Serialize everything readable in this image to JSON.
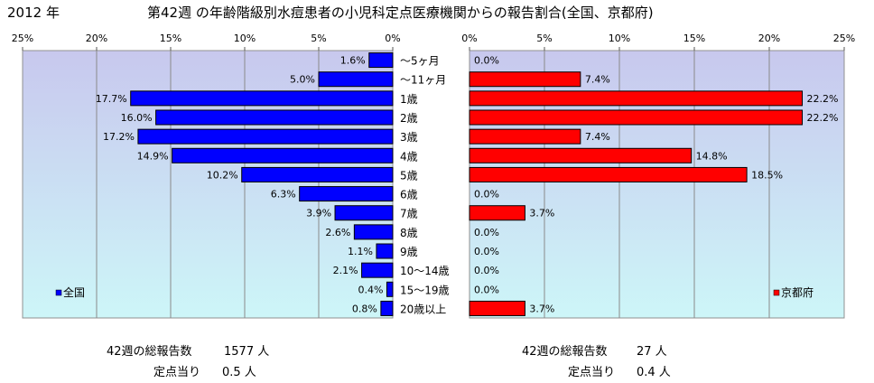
{
  "header": {
    "year": "2012 年",
    "title": "第42週 の年齢階級別水痘患者の小児科定点医療機関からの報告割合(全国、京都府)"
  },
  "chart_data": {
    "type": "bar",
    "categories": [
      "～5ヶ月",
      "～11ヶ月",
      "1歳",
      "2歳",
      "3歳",
      "4歳",
      "5歳",
      "6歳",
      "7歳",
      "8歳",
      "9歳",
      "10～14歳",
      "15～19歳",
      "20歳以上"
    ],
    "xlim": [
      0,
      25
    ],
    "x_ticks": [
      "0%",
      "5%",
      "10%",
      "15%",
      "20%",
      "25%"
    ],
    "unit": "%",
    "grid": true,
    "series": [
      {
        "name": "全国",
        "color": "#0000ff",
        "legend_position": "bottom-left",
        "values": [
          1.6,
          5.0,
          17.7,
          16.0,
          17.2,
          14.9,
          10.2,
          6.3,
          3.9,
          2.6,
          1.1,
          2.1,
          0.4,
          0.8
        ],
        "labels": [
          "1.6%",
          "5.0%",
          "17.7%",
          "16.0%",
          "17.2%",
          "14.9%",
          "10.2%",
          "6.3%",
          "3.9%",
          "2.6%",
          "1.1%",
          "2.1%",
          "0.4%",
          "0.8%"
        ]
      },
      {
        "name": "京都府",
        "color": "#ff0000",
        "legend_position": "bottom-right",
        "values": [
          0.0,
          7.4,
          22.2,
          22.2,
          7.4,
          14.8,
          18.5,
          0.0,
          3.7,
          0.0,
          0.0,
          0.0,
          0.0,
          3.7
        ],
        "labels": [
          "0.0%",
          "7.4%",
          "22.2%",
          "22.2%",
          "7.4%",
          "14.8%",
          "18.5%",
          "0.0%",
          "3.7%",
          "0.0%",
          "0.0%",
          "0.0%",
          "0.0%",
          "3.7%"
        ]
      }
    ]
  },
  "stats": {
    "national": {
      "total_label": "42週の総報告数",
      "total_value": "1577 人",
      "per_label": "定点当り",
      "per_value": "0.5 人"
    },
    "kyoto": {
      "total_label": "42週の総報告数",
      "total_value": "27 人",
      "per_label": "定点当り",
      "per_value": "0.4 人"
    }
  }
}
